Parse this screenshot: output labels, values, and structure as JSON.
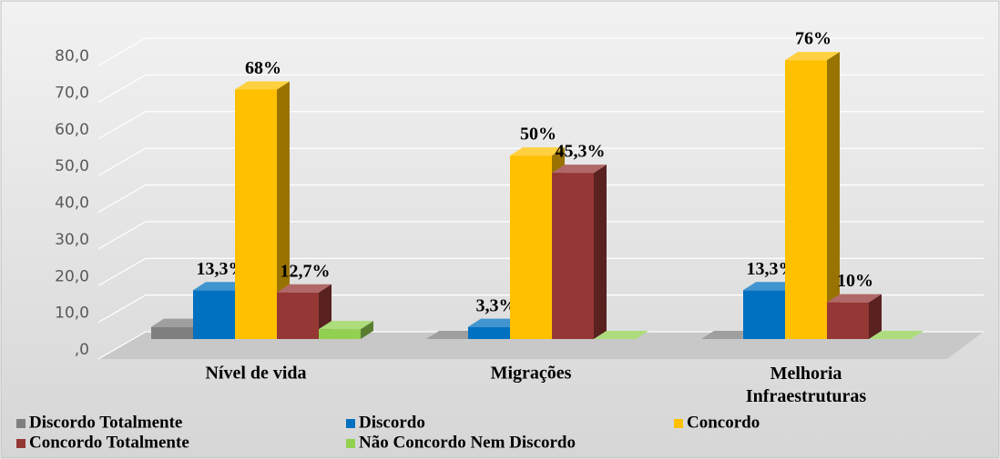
{
  "chart_data": {
    "type": "bar3d",
    "categories": [
      "Nível de vida",
      "Migrações",
      "Melhoria Infraestruturas"
    ],
    "series": [
      {
        "name": "Discordo Totalmente",
        "color": "#7f7f7f",
        "values": [
          3.3,
          0,
          0
        ]
      },
      {
        "name": "Discordo",
        "color": "#0070c0",
        "values": [
          13.3,
          3.3,
          13.3
        ],
        "value_labels": [
          "13,3%",
          "3,3%",
          "13,3%"
        ]
      },
      {
        "name": "Concordo",
        "color": "#ffc000",
        "values": [
          68,
          50,
          76
        ],
        "value_labels": [
          "68%",
          "50%",
          "76%"
        ]
      },
      {
        "name": "Concordo Totalmente",
        "color": "#953735",
        "values": [
          12.7,
          45.3,
          10
        ],
        "value_labels": [
          "12,7%",
          "45,3%",
          "10%"
        ]
      },
      {
        "name": "Não Concordo Nem Discordo",
        "color": "#92d050",
        "values": [
          2.7,
          0,
          0
        ]
      }
    ],
    "ylim": [
      0,
      80
    ],
    "yticks": [
      {
        "value": 0,
        "label": ",0"
      },
      {
        "value": 10,
        "label": "10,0"
      },
      {
        "value": 20,
        "label": "20,0"
      },
      {
        "value": 30,
        "label": "30,0"
      },
      {
        "value": 40,
        "label": "40,0"
      },
      {
        "value": 50,
        "label": "50,0"
      },
      {
        "value": 60,
        "label": "60,0"
      },
      {
        "value": 70,
        "label": "70,0"
      },
      {
        "value": 80,
        "label": "80,0"
      }
    ],
    "grid": true,
    "legend": "bottom"
  }
}
